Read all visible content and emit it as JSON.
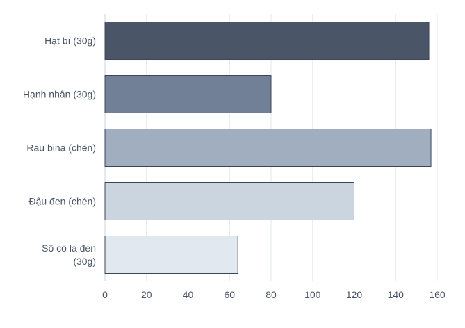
{
  "chart_data": {
    "type": "bar",
    "orientation": "horizontal",
    "categories": [
      [
        "Hạt bí (30g)"
      ],
      [
        "Hạnh nhân (30g)"
      ],
      [
        "Rau bina (chén)"
      ],
      [
        "Đậu đen (chén)"
      ],
      [
        "Sô cô la đen",
        "(30g)"
      ]
    ],
    "values": [
      156,
      80,
      157,
      120,
      64
    ],
    "colors": [
      "#4a5568",
      "#718096",
      "#a0aec0",
      "#cbd5e0",
      "#e2e8f0"
    ],
    "bar_border_color": "#3d4656",
    "xlim": [
      0,
      160
    ],
    "xticks": [
      "0",
      "20",
      "40",
      "60",
      "80",
      "100",
      "120",
      "140",
      "160"
    ],
    "grid": true,
    "title": "",
    "xlabel": "",
    "ylabel": ""
  }
}
